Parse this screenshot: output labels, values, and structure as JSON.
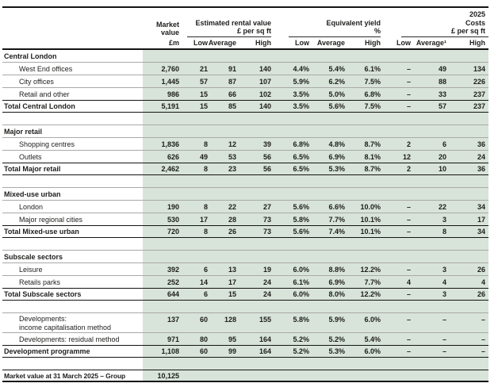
{
  "year": "2025",
  "colors": {
    "row_shading": "#d8e4d9",
    "separator_gray": "#a9a9a9",
    "rule_black": "#141414",
    "text": "#1d1d1b"
  },
  "header": {
    "market": {
      "line1": "Market",
      "line2": "value",
      "unit": "£m"
    },
    "groups": [
      {
        "title": "Estimated rental value",
        "unit": "£ per sq ft",
        "cols": [
          "Low",
          "Average",
          "High"
        ]
      },
      {
        "title": "Equivalent yield",
        "unit": "%",
        "cols": [
          "Low",
          "Average",
          "High"
        ]
      },
      {
        "title": "Costs",
        "unit": "£ per sq ft",
        "cols": [
          "Low",
          "Average¹",
          "High"
        ]
      }
    ]
  },
  "rows": [
    {
      "type": "section",
      "label": "Central London"
    },
    {
      "type": "item",
      "label": "West End offices",
      "values": [
        "2,760",
        "21",
        "91",
        "140",
        "4.4%",
        "5.4%",
        "6.1%",
        "–",
        "49",
        "134"
      ]
    },
    {
      "type": "item",
      "label": "City offices",
      "values": [
        "1,445",
        "57",
        "87",
        "107",
        "5.9%",
        "6.2%",
        "7.5%",
        "–",
        "88",
        "226"
      ]
    },
    {
      "type": "item",
      "label": "Retail and other",
      "values": [
        "986",
        "15",
        "66",
        "102",
        "3.5%",
        "5.0%",
        "6.8%",
        "–",
        "33",
        "237"
      ]
    },
    {
      "type": "total",
      "label": "Total Central London",
      "values": [
        "5,191",
        "15",
        "85",
        "140",
        "3.5%",
        "5.6%",
        "7.5%",
        "–",
        "57",
        "237"
      ]
    },
    {
      "type": "spacer"
    },
    {
      "type": "section",
      "label": "Major retail"
    },
    {
      "type": "item",
      "label": "Shopping centres",
      "values": [
        "1,836",
        "8",
        "12",
        "39",
        "6.8%",
        "4.8%",
        "8.7%",
        "2",
        "6",
        "36"
      ]
    },
    {
      "type": "item",
      "label": "Outlets",
      "values": [
        "626",
        "49",
        "53",
        "56",
        "6.5%",
        "6.9%",
        "8.1%",
        "12",
        "20",
        "24"
      ]
    },
    {
      "type": "total",
      "label": "Total Major retail",
      "values": [
        "2,462",
        "8",
        "23",
        "56",
        "6.5%",
        "5.3%",
        "8.7%",
        "2",
        "10",
        "36"
      ]
    },
    {
      "type": "spacer"
    },
    {
      "type": "section",
      "label": "Mixed-use urban"
    },
    {
      "type": "item",
      "label": "London",
      "values": [
        "190",
        "8",
        "22",
        "27",
        "5.6%",
        "6.6%",
        "10.0%",
        "–",
        "22",
        "34"
      ]
    },
    {
      "type": "item",
      "label": "Major regional cities",
      "values": [
        "530",
        "17",
        "28",
        "73",
        "5.8%",
        "7.7%",
        "10.1%",
        "–",
        "3",
        "17"
      ]
    },
    {
      "type": "total",
      "label": "Total Mixed-use urban",
      "values": [
        "720",
        "8",
        "26",
        "73",
        "5.6%",
        "7.4%",
        "10.1%",
        "–",
        "8",
        "34"
      ]
    },
    {
      "type": "spacer"
    },
    {
      "type": "section",
      "label": "Subscale sectors"
    },
    {
      "type": "item",
      "label": "Leisure",
      "values": [
        "392",
        "6",
        "13",
        "19",
        "6.0%",
        "8.8%",
        "12.2%",
        "–",
        "3",
        "26"
      ]
    },
    {
      "type": "item",
      "label": "Retails parks",
      "values": [
        "252",
        "14",
        "17",
        "24",
        "6.1%",
        "6.9%",
        "7.7%",
        "4",
        "4",
        "4"
      ]
    },
    {
      "type": "total",
      "label": "Total Subscale sectors",
      "values": [
        "644",
        "6",
        "15",
        "24",
        "6.0%",
        "8.0%",
        "12.2%",
        "–",
        "3",
        "26"
      ]
    },
    {
      "type": "spacer"
    },
    {
      "type": "dev2",
      "label_lines": [
        "Developments:",
        "income capitalisation method"
      ],
      "values": [
        "137",
        "60",
        "128",
        "155",
        "5.8%",
        "5.9%",
        "6.0%",
        "–",
        "–",
        "–"
      ]
    },
    {
      "type": "item",
      "label": "Developments: residual method",
      "values": [
        "971",
        "80",
        "95",
        "164",
        "5.2%",
        "5.2%",
        "5.4%",
        "–",
        "–",
        "–"
      ]
    },
    {
      "type": "total",
      "label": "Development programme",
      "values": [
        "1,108",
        "60",
        "99",
        "164",
        "5.2%",
        "5.3%",
        "6.0%",
        "–",
        "–",
        "–"
      ]
    },
    {
      "type": "spacer"
    },
    {
      "type": "grand",
      "label": "Market value at 31 March 2025 – Group",
      "values": [
        "10,125"
      ]
    }
  ]
}
